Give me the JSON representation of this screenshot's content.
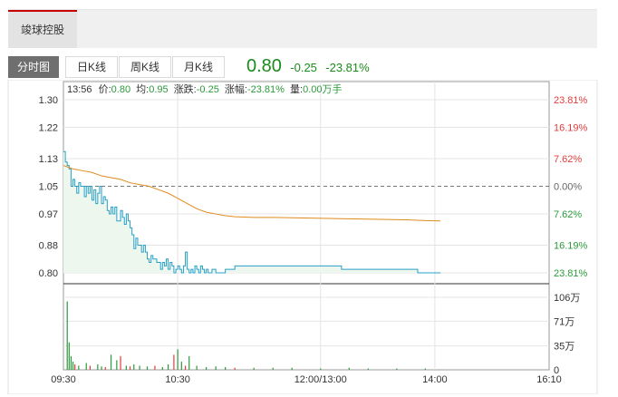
{
  "stock": {
    "name": "竣球控股"
  },
  "tabs": [
    "分时图",
    "日K线",
    "周K线",
    "月K线"
  ],
  "active_tab": "分时图",
  "quote": {
    "price": "0.80",
    "change": "-0.25",
    "change_pct": "-23.81%"
  },
  "info_line": {
    "time": "13:56",
    "price_label": "价:",
    "price": "0.80",
    "avg_label": "均:",
    "avg": "0.95",
    "change_label": "涨跌:",
    "change": "-0.25",
    "pct_label": "涨幅:",
    "pct": "-23.81%",
    "volume_label": "量:",
    "volume": "0.00万手"
  },
  "colors": {
    "up": "#e23c3c",
    "down": "#2a9a3a",
    "price_line": "#27a0c8",
    "avg_line": "#e08a1e",
    "area_fill": "#eef7ee",
    "grid": "#e4e4e4",
    "border": "#999999"
  },
  "chart_data": {
    "type": "line",
    "prev_close": 1.05,
    "y_ticks": [
      "1.30",
      "1.22",
      "1.13",
      "1.05",
      "0.97",
      "0.88",
      "0.80"
    ],
    "y_tick_values": [
      1.3,
      1.22,
      1.13,
      1.05,
      0.97,
      0.88,
      0.8
    ],
    "right_ticks": [
      "23.81%",
      "16.19%",
      "7.62%",
      "0.00%",
      "7.62%",
      "16.19%",
      "23.81%"
    ],
    "ylim": [
      0.8,
      1.3
    ],
    "x_ticks": [
      "09:30",
      "10:30",
      "12:00/13:00",
      "14:00",
      "16:10"
    ],
    "x_tick_minutes": [
      0,
      60,
      135,
      195,
      255
    ],
    "session_minutes": 255,
    "volume_ticks": [
      "106万",
      "71万",
      "35万",
      "0"
    ],
    "volume_tick_values": [
      106,
      71,
      35,
      0
    ],
    "volume_max": 106,
    "series": [
      {
        "name": "价",
        "x": [
          0,
          1,
          2,
          3,
          4,
          5,
          6,
          7,
          8,
          9,
          10,
          11,
          12,
          13,
          14,
          15,
          16,
          17,
          18,
          19,
          20,
          21,
          22,
          23,
          24,
          25,
          26,
          27,
          28,
          29,
          30,
          31,
          32,
          33,
          34,
          35,
          36,
          37,
          38,
          39,
          40,
          41,
          42,
          43,
          44,
          45,
          46,
          47,
          48,
          49,
          50,
          51,
          52,
          53,
          54,
          55,
          56,
          57,
          58,
          59,
          60,
          61,
          62,
          63,
          64,
          65,
          66,
          67,
          68,
          69,
          70,
          71,
          72,
          73,
          74,
          75,
          76,
          78,
          80,
          85,
          90,
          95,
          100,
          105,
          110,
          112,
          115,
          120,
          125,
          130,
          135,
          140,
          145,
          146,
          150,
          155,
          160,
          165,
          170,
          175,
          180,
          185,
          186,
          190,
          195,
          198
        ],
        "y": [
          1.15,
          1.12,
          1.11,
          1.1,
          1.05,
          1.07,
          1.05,
          1.03,
          1.06,
          1.05,
          1.05,
          1.02,
          1.05,
          1.03,
          1.05,
          1.01,
          1.04,
          1.0,
          1.03,
          1.05,
          1.0,
          1.02,
          1.01,
          0.98,
          0.97,
          0.99,
          0.97,
          0.99,
          0.95,
          0.95,
          0.98,
          0.96,
          0.94,
          0.97,
          0.95,
          0.93,
          0.91,
          0.87,
          0.9,
          0.88,
          0.88,
          0.86,
          0.88,
          0.86,
          0.84,
          0.83,
          0.85,
          0.84,
          0.84,
          0.83,
          0.83,
          0.81,
          0.83,
          0.82,
          0.84,
          0.81,
          0.83,
          0.82,
          0.8,
          0.81,
          0.82,
          0.81,
          0.8,
          0.82,
          0.86,
          0.81,
          0.8,
          0.81,
          0.8,
          0.82,
          0.81,
          0.8,
          0.82,
          0.81,
          0.8,
          0.81,
          0.8,
          0.81,
          0.8,
          0.81,
          0.82,
          0.82,
          0.82,
          0.82,
          0.82,
          0.82,
          0.82,
          0.82,
          0.82,
          0.82,
          0.82,
          0.82,
          0.82,
          0.81,
          0.81,
          0.81,
          0.81,
          0.81,
          0.81,
          0.81,
          0.81,
          0.81,
          0.8,
          0.8,
          0.8,
          0.8
        ]
      },
      {
        "name": "均",
        "x": [
          0,
          5,
          10,
          15,
          20,
          25,
          30,
          35,
          40,
          45,
          50,
          55,
          60,
          65,
          70,
          75,
          80,
          85,
          90,
          100,
          110,
          120,
          130,
          140,
          150,
          160,
          170,
          180,
          190,
          198
        ],
        "y": [
          1.11,
          1.1,
          1.095,
          1.09,
          1.08,
          1.075,
          1.07,
          1.06,
          1.055,
          1.05,
          1.04,
          1.03,
          1.015,
          1.0,
          0.985,
          0.975,
          0.97,
          0.965,
          0.962,
          0.96,
          0.96,
          0.959,
          0.958,
          0.957,
          0.956,
          0.955,
          0.954,
          0.953,
          0.951,
          0.95
        ]
      }
    ],
    "volume": {
      "x": [
        2,
        3,
        4,
        5,
        6,
        8,
        12,
        14,
        18,
        20,
        22,
        25,
        28,
        30,
        33,
        35,
        37,
        40,
        44,
        48,
        52,
        55,
        58,
        60,
        62,
        64,
        66,
        70,
        75,
        80,
        85,
        90,
        100,
        110,
        120,
        135,
        150,
        160,
        175,
        190
      ],
      "values": [
        100,
        40,
        20,
        12,
        8,
        6,
        10,
        6,
        8,
        5,
        4,
        22,
        14,
        20,
        6,
        5,
        8,
        6,
        5,
        6,
        4,
        8,
        22,
        30,
        12,
        6,
        20,
        6,
        4,
        5,
        4,
        3,
        3,
        3,
        3,
        2,
        3,
        2,
        2,
        2
      ],
      "colors": [
        "down",
        "down",
        "down",
        "down",
        "up",
        "down",
        "down",
        "up",
        "down",
        "down",
        "up",
        "down",
        "down",
        "up",
        "down",
        "up",
        "down",
        "down",
        "down",
        "up",
        "down",
        "down",
        "up",
        "down",
        "down",
        "up",
        "down",
        "down",
        "down",
        "down",
        "down",
        "up",
        "down",
        "down",
        "down",
        "down",
        "down",
        "down",
        "down",
        "down"
      ]
    }
  }
}
